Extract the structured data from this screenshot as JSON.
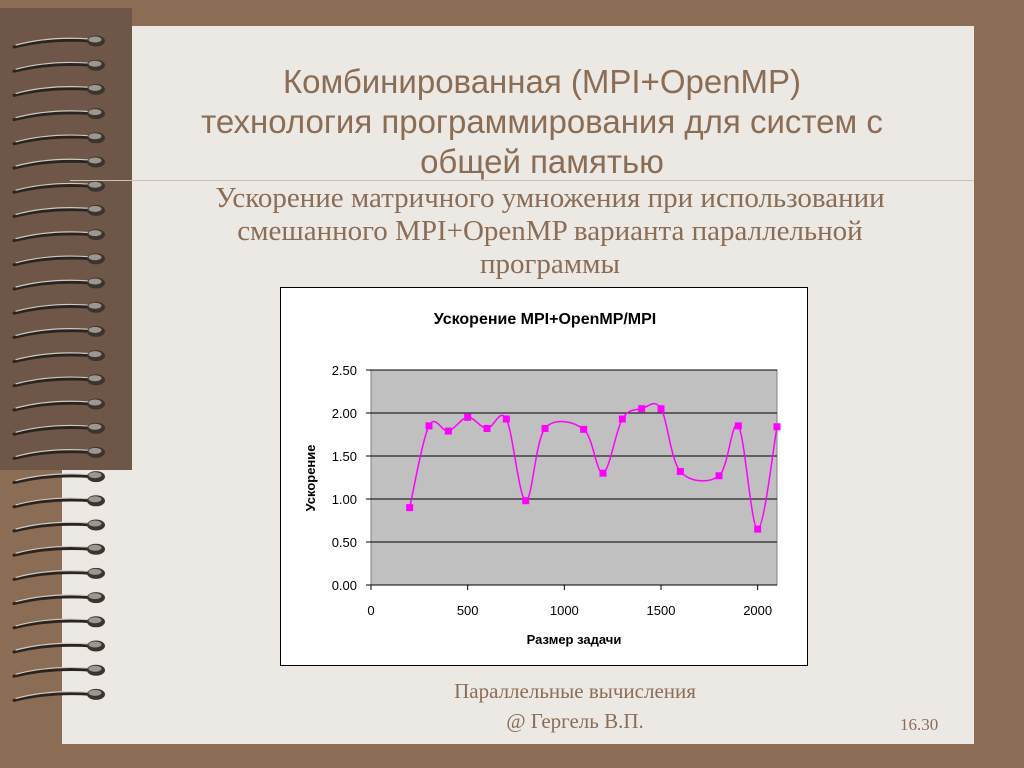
{
  "slide": {
    "title_lines": [
      "Комбинированная (MPI+OpenMP)",
      "технология программирования для систем с",
      "общей памятью"
    ],
    "subtitle_lines": [
      "Ускорение матричного умножения при использовании",
      "смешанного MPI+OpenMP варианта параллельной",
      "программы"
    ],
    "footer_lines": [
      "Параллельные вычисления",
      "@ Гергель В.П."
    ],
    "slide_number": "16.30"
  },
  "colors": {
    "background": "#8b6d56",
    "page": "#ece9e4",
    "accent_text": "#8b6d56",
    "plot_area": "#c0c0c0",
    "series": "#ff00ff"
  },
  "chart_data": {
    "type": "scatter",
    "title": "Ускорение MPI+OpenMP/MPI",
    "xlabel": "Размер задачи",
    "ylabel": "Ускорение",
    "xlim": [
      0,
      2100
    ],
    "ylim": [
      0,
      2.5
    ],
    "xticks": [
      "0",
      "500",
      "1000",
      "1500",
      "2000"
    ],
    "xtick_values": [
      0,
      500,
      1000,
      1500,
      2000
    ],
    "yticks": [
      "0.00",
      "0.50",
      "1.00",
      "1.50",
      "2.00",
      "2.50"
    ],
    "ytick_values": [
      0,
      0.5,
      1.0,
      1.5,
      2.0,
      2.5
    ],
    "grid": "horizontal",
    "smoothed_line": true,
    "series": [
      {
        "x": [
          200,
          300,
          400,
          500,
          600,
          700,
          800,
          900,
          1100,
          1200,
          1300,
          1400,
          1500,
          1600,
          1800,
          1900,
          2000,
          2100
        ],
        "y": [
          0.9,
          1.85,
          1.79,
          1.95,
          1.82,
          1.93,
          0.98,
          1.82,
          1.81,
          1.3,
          1.93,
          2.05,
          2.05,
          1.32,
          1.27,
          1.85,
          0.65,
          1.84
        ]
      }
    ]
  }
}
